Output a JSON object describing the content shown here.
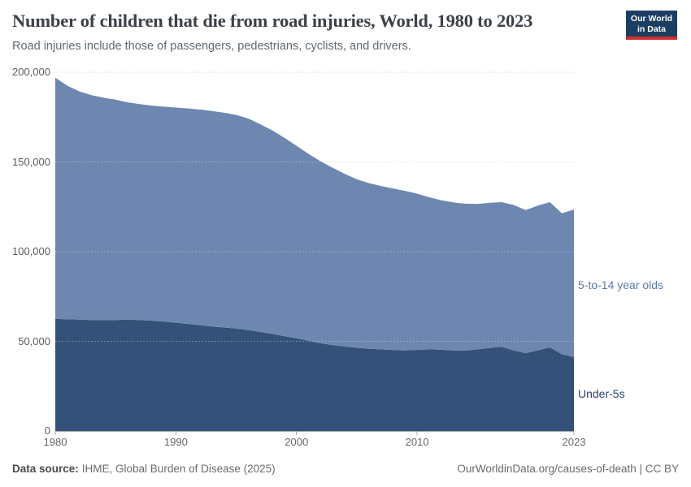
{
  "header": {
    "title": "Number of children that die from road injuries, World, 1980 to 2023",
    "subtitle": "Road injuries include those of passengers, pedestrians, cyclists, and drivers.",
    "logo": {
      "line1": "Our World",
      "line2": "in Data",
      "bg_color": "#1d3d63",
      "bar_color": "#cf2e2e",
      "text_color": "#ffffff"
    }
  },
  "chart_data": {
    "type": "area",
    "stacked": true,
    "title": "Number of children that die from road injuries, World, 1980 to 2023",
    "xlabel": "",
    "ylabel": "",
    "x": [
      1980,
      1981,
      1982,
      1983,
      1984,
      1985,
      1986,
      1987,
      1988,
      1989,
      1990,
      1991,
      1992,
      1993,
      1994,
      1995,
      1996,
      1997,
      1998,
      1999,
      2000,
      2001,
      2002,
      2003,
      2004,
      2005,
      2006,
      2007,
      2008,
      2009,
      2010,
      2011,
      2012,
      2013,
      2014,
      2015,
      2016,
      2017,
      2018,
      2019,
      2020,
      2021,
      2022,
      2023
    ],
    "series": [
      {
        "name": "Under-5s",
        "color": "#335179",
        "label_color": "#27456f",
        "values": [
          62500,
          62300,
          62100,
          61900,
          61800,
          61900,
          62100,
          61900,
          61500,
          61000,
          60400,
          59700,
          59000,
          58300,
          57700,
          57100,
          56200,
          55200,
          54100,
          52900,
          51700,
          50300,
          48900,
          47900,
          47100,
          46400,
          45900,
          45500,
          45100,
          44900,
          45200,
          45500,
          45300,
          44900,
          44800,
          45500,
          46300,
          47000,
          45000,
          43400,
          45000,
          46600,
          42800,
          41300
        ]
      },
      {
        "name": "5-to-14 year olds",
        "color": "#6e87b0",
        "label_color": "#5d79a8",
        "values": [
          134500,
          130200,
          127200,
          125300,
          124000,
          122800,
          121100,
          120300,
          119900,
          119800,
          119900,
          120100,
          120200,
          120100,
          119700,
          119100,
          118000,
          115800,
          113400,
          110600,
          107300,
          104200,
          101400,
          98800,
          96200,
          93900,
          92300,
          91100,
          90100,
          89000,
          87100,
          84800,
          83300,
          82500,
          81900,
          81100,
          80900,
          80600,
          81000,
          79800,
          80600,
          81000,
          78600,
          82200
        ]
      }
    ],
    "ylim": [
      0,
      200000
    ],
    "yticks": [
      0,
      50000,
      100000,
      150000,
      200000
    ],
    "ytick_labels": [
      "0",
      "50,000",
      "100,000",
      "150,000",
      "200,000"
    ],
    "xticks": [
      1980,
      1990,
      2000,
      2010,
      2023
    ],
    "grid": "horizontal-dashed",
    "legend_position": "right-inline-labels"
  },
  "footer": {
    "source_label": "Data source:",
    "source_text": "IHME, Global Burden of Disease (2025)",
    "credit": "OurWorldinData.org/causes-of-death | CC BY"
  }
}
